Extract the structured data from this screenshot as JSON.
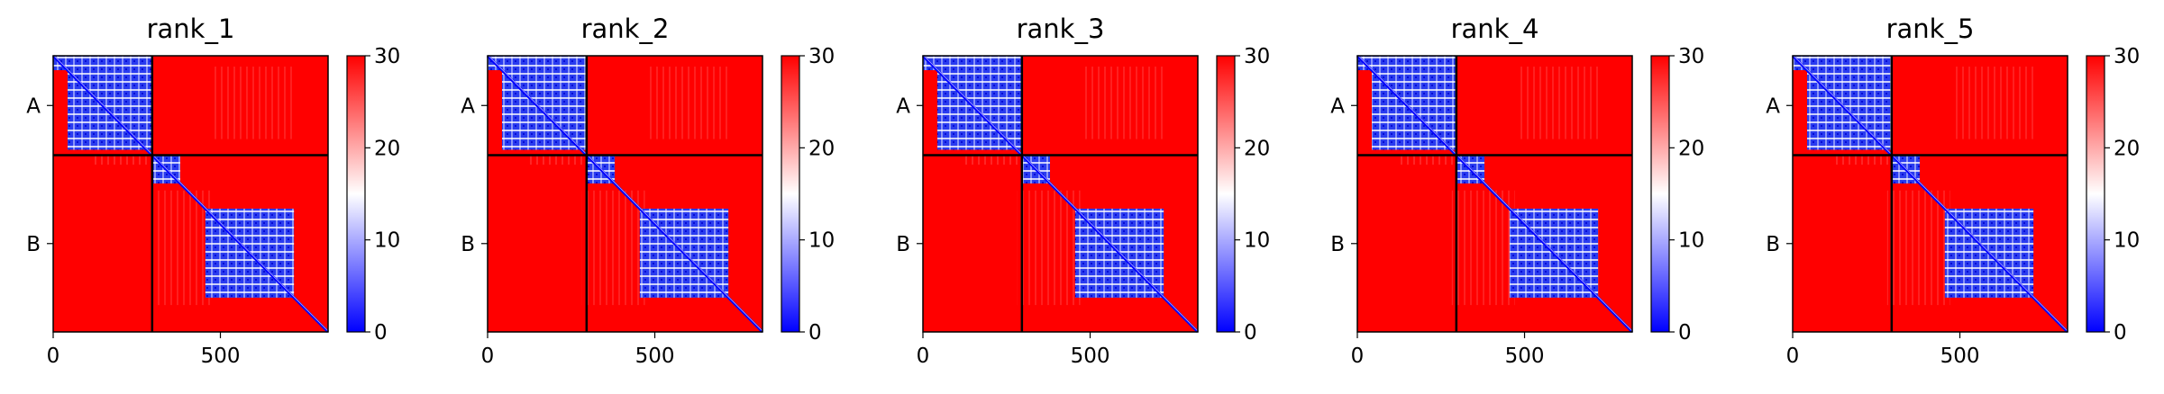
{
  "chart_data": [
    {
      "type": "heatmap",
      "title": "rank_1",
      "chain_labels": [
        "A",
        "B"
      ],
      "chain_boundary": 296,
      "total_length": 822,
      "xticks": [
        0,
        500
      ],
      "colorbar": {
        "min": 0,
        "max": 30,
        "ticks": [
          0,
          10,
          20,
          30
        ],
        "colormap": [
          "#0000ff",
          "#ffffff",
          "#ff0000"
        ]
      },
      "low_error_blocks": [
        {
          "from": 0,
          "to": 296
        },
        {
          "from": 296,
          "to": 380
        },
        {
          "from": 455,
          "to": 720
        }
      ]
    },
    {
      "type": "heatmap",
      "title": "rank_2",
      "chain_labels": [
        "A",
        "B"
      ],
      "chain_boundary": 296,
      "total_length": 822,
      "xticks": [
        0,
        500
      ],
      "colorbar": {
        "min": 0,
        "max": 30,
        "ticks": [
          0,
          10,
          20,
          30
        ],
        "colormap": [
          "#0000ff",
          "#ffffff",
          "#ff0000"
        ]
      },
      "low_error_blocks": [
        {
          "from": 0,
          "to": 296
        },
        {
          "from": 296,
          "to": 380
        },
        {
          "from": 455,
          "to": 720
        }
      ]
    },
    {
      "type": "heatmap",
      "title": "rank_3",
      "chain_labels": [
        "A",
        "B"
      ],
      "chain_boundary": 296,
      "total_length": 822,
      "xticks": [
        0,
        500
      ],
      "colorbar": {
        "min": 0,
        "max": 30,
        "ticks": [
          0,
          10,
          20,
          30
        ],
        "colormap": [
          "#0000ff",
          "#ffffff",
          "#ff0000"
        ]
      },
      "low_error_blocks": [
        {
          "from": 0,
          "to": 296
        },
        {
          "from": 296,
          "to": 380
        },
        {
          "from": 455,
          "to": 720
        }
      ]
    },
    {
      "type": "heatmap",
      "title": "rank_4",
      "chain_labels": [
        "A",
        "B"
      ],
      "chain_boundary": 296,
      "total_length": 822,
      "xticks": [
        0,
        500
      ],
      "colorbar": {
        "min": 0,
        "max": 30,
        "ticks": [
          0,
          10,
          20,
          30
        ],
        "colormap": [
          "#0000ff",
          "#ffffff",
          "#ff0000"
        ]
      },
      "low_error_blocks": [
        {
          "from": 0,
          "to": 296
        },
        {
          "from": 296,
          "to": 380
        },
        {
          "from": 455,
          "to": 720
        }
      ]
    },
    {
      "type": "heatmap",
      "title": "rank_5",
      "chain_labels": [
        "A",
        "B"
      ],
      "chain_boundary": 296,
      "total_length": 822,
      "xticks": [
        0,
        500
      ],
      "colorbar": {
        "min": 0,
        "max": 30,
        "ticks": [
          0,
          10,
          20,
          30
        ],
        "colormap": [
          "#0000ff",
          "#ffffff",
          "#ff0000"
        ]
      },
      "low_error_blocks": [
        {
          "from": 0,
          "to": 296
        },
        {
          "from": 296,
          "to": 380
        },
        {
          "from": 455,
          "to": 720
        }
      ]
    }
  ]
}
